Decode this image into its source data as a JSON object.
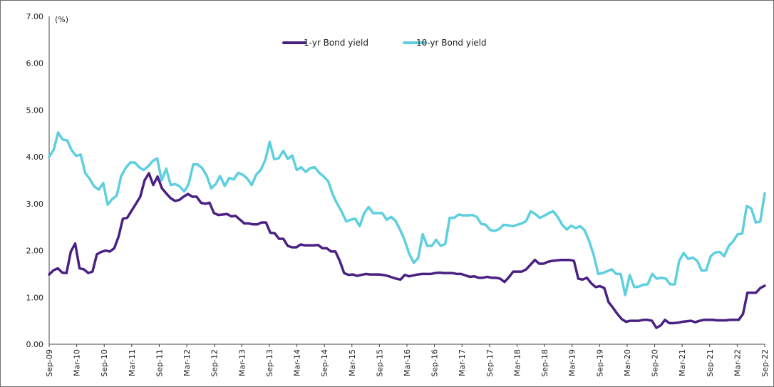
{
  "chart_data": {
    "type": "line",
    "title": "",
    "xlabel": "",
    "ylabel": "(%)",
    "ylim": [
      0,
      7
    ],
    "yticks": [
      "0.00",
      "1.00",
      "2.00",
      "3.00",
      "4.00",
      "5.00",
      "6.00",
      "7.00"
    ],
    "grid": false,
    "legend_position": "top-center",
    "x_start": "2009-09",
    "x_end": "2022-09",
    "xtick_labels": [
      "Sep-09",
      "Mar-10",
      "Sep-10",
      "Mar-11",
      "Sep-11",
      "Mar-12",
      "Sep-12",
      "Mar-13",
      "Sep-13",
      "Mar-14",
      "Sep-14",
      "Mar-15",
      "Sep-15",
      "Mar-16",
      "Sep-16",
      "Mar-17",
      "Sep-17",
      "Mar-18",
      "Sep-18",
      "Mar-19",
      "Sep-19",
      "Mar-20",
      "Sep-20",
      "Mar-21",
      "Sep-21",
      "Mar-22",
      "Sep-22"
    ],
    "series": [
      {
        "name": "1-yr Bond yield",
        "color": "#4a2183",
        "values": [
          1.49,
          1.58,
          1.62,
          1.53,
          1.52,
          1.98,
          2.15,
          1.62,
          1.6,
          1.52,
          1.55,
          1.92,
          1.97,
          2.0,
          1.98,
          2.05,
          2.3,
          2.68,
          2.7,
          2.85,
          3.0,
          3.15,
          3.5,
          3.65,
          3.4,
          3.58,
          3.33,
          3.22,
          3.12,
          3.06,
          3.08,
          3.15,
          3.21,
          3.15,
          3.15,
          3.02,
          3.0,
          3.02,
          2.8,
          2.76,
          2.77,
          2.78,
          2.73,
          2.74,
          2.66,
          2.58,
          2.58,
          2.56,
          2.56,
          2.6,
          2.6,
          2.38,
          2.37,
          2.25,
          2.25,
          2.1,
          2.07,
          2.07,
          2.13,
          2.11,
          2.11,
          2.11,
          2.12,
          2.05,
          2.05,
          1.98,
          1.98,
          1.78,
          1.52,
          1.48,
          1.49,
          1.46,
          1.48,
          1.5,
          1.49,
          1.49,
          1.49,
          1.48,
          1.46,
          1.43,
          1.4,
          1.38,
          1.48,
          1.45,
          1.47,
          1.49,
          1.5,
          1.5,
          1.5,
          1.52,
          1.53,
          1.52,
          1.52,
          1.52,
          1.5,
          1.5,
          1.47,
          1.44,
          1.45,
          1.42,
          1.42,
          1.44,
          1.42,
          1.42,
          1.4,
          1.33,
          1.43,
          1.55,
          1.55,
          1.55,
          1.6,
          1.7,
          1.8,
          1.72,
          1.72,
          1.76,
          1.78,
          1.79,
          1.8,
          1.8,
          1.8,
          1.78,
          1.4,
          1.38,
          1.42,
          1.3,
          1.22,
          1.24,
          1.2,
          0.9,
          0.78,
          0.65,
          0.54,
          0.48,
          0.5,
          0.5,
          0.5,
          0.52,
          0.52,
          0.5,
          0.35,
          0.4,
          0.52,
          0.45,
          0.45,
          0.46,
          0.48,
          0.49,
          0.5,
          0.47,
          0.5,
          0.52,
          0.52,
          0.52,
          0.51,
          0.51,
          0.51,
          0.52,
          0.52,
          0.52,
          0.65,
          1.1,
          1.1,
          1.1,
          1.2,
          1.25
        ]
      },
      {
        "name": "10-yr Bond yield",
        "color": "#5ecfdf",
        "values": [
          4.0,
          4.15,
          4.52,
          4.37,
          4.35,
          4.14,
          4.02,
          4.05,
          3.66,
          3.53,
          3.37,
          3.3,
          3.44,
          2.98,
          3.1,
          3.17,
          3.59,
          3.76,
          3.88,
          3.88,
          3.78,
          3.72,
          3.8,
          3.91,
          3.97,
          3.5,
          3.75,
          3.4,
          3.42,
          3.37,
          3.26,
          3.42,
          3.84,
          3.84,
          3.76,
          3.6,
          3.33,
          3.42,
          3.59,
          3.38,
          3.55,
          3.52,
          3.66,
          3.62,
          3.54,
          3.4,
          3.62,
          3.72,
          3.93,
          4.32,
          3.95,
          3.97,
          4.13,
          3.96,
          4.03,
          3.72,
          3.78,
          3.68,
          3.76,
          3.78,
          3.66,
          3.58,
          3.48,
          3.2,
          3.0,
          2.83,
          2.62,
          2.66,
          2.68,
          2.52,
          2.8,
          2.93,
          2.8,
          2.8,
          2.8,
          2.66,
          2.72,
          2.63,
          2.44,
          2.22,
          1.93,
          1.74,
          1.84,
          2.35,
          2.1,
          2.1,
          2.23,
          2.1,
          2.14,
          2.7,
          2.7,
          2.77,
          2.75,
          2.75,
          2.76,
          2.72,
          2.57,
          2.55,
          2.44,
          2.42,
          2.46,
          2.55,
          2.54,
          2.52,
          2.55,
          2.58,
          2.63,
          2.84,
          2.78,
          2.7,
          2.74,
          2.8,
          2.84,
          2.72,
          2.55,
          2.45,
          2.53,
          2.48,
          2.52,
          2.43,
          2.2,
          1.9,
          1.5,
          1.52,
          1.56,
          1.6,
          1.5,
          1.5,
          1.05,
          1.48,
          1.22,
          1.23,
          1.27,
          1.28,
          1.5,
          1.4,
          1.42,
          1.4,
          1.28,
          1.28,
          1.78,
          1.95,
          1.82,
          1.85,
          1.78,
          1.57,
          1.58,
          1.88,
          1.96,
          1.97,
          1.88,
          2.1,
          2.2,
          2.35,
          2.36,
          2.95,
          2.9,
          2.6,
          2.62,
          3.22
        ]
      }
    ]
  }
}
